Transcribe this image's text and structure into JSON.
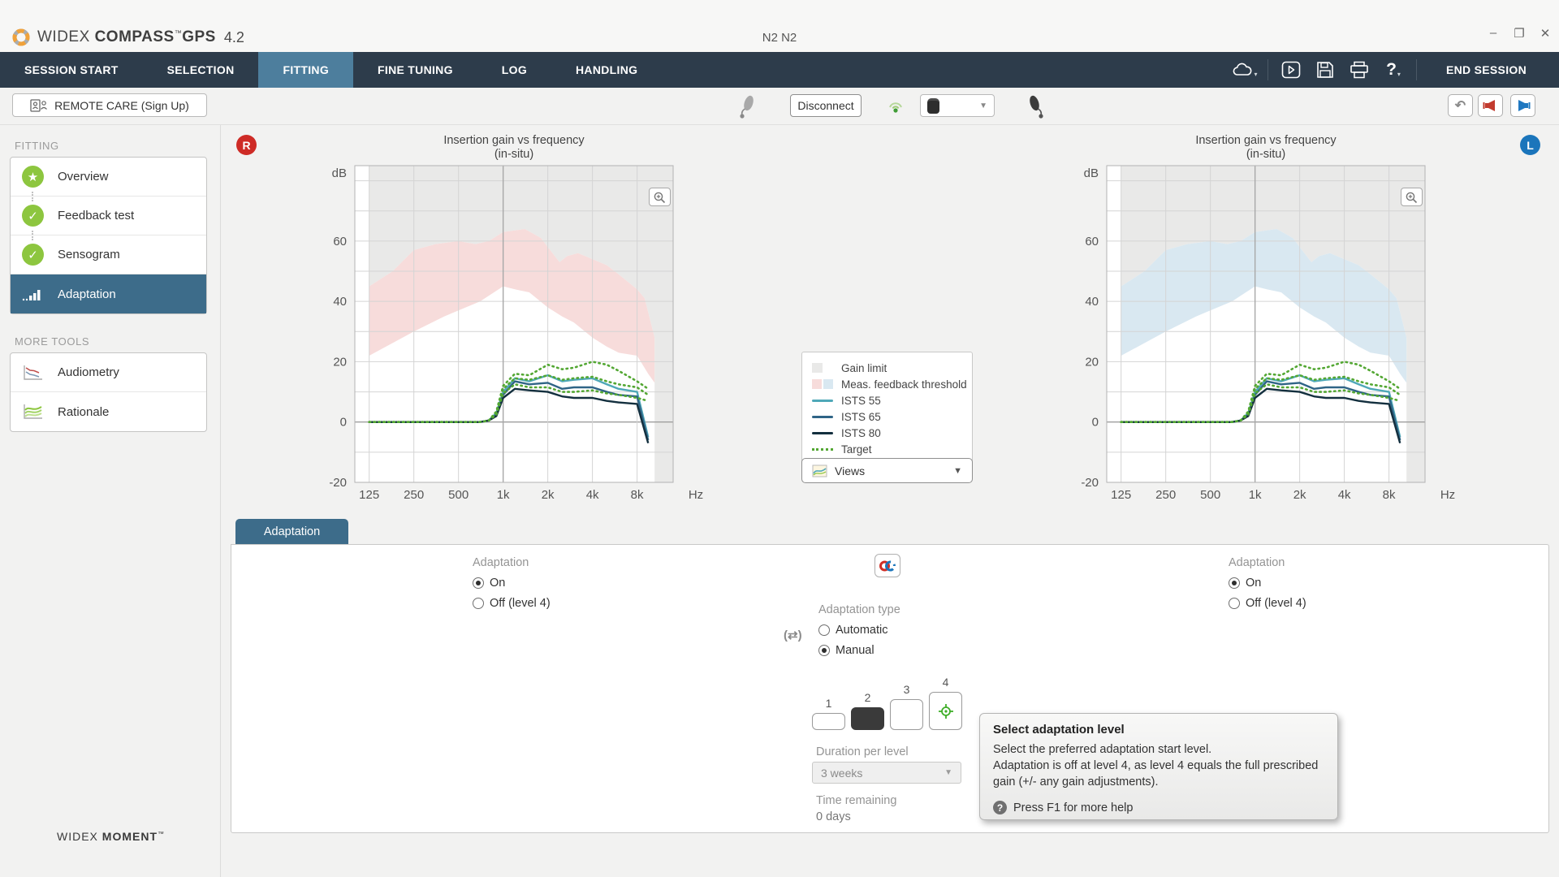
{
  "window": {
    "brand": "WIDEX",
    "product": "COMPASS",
    "tm": "™",
    "suite": "GPS",
    "version": "4.2",
    "center_title": "N2 N2"
  },
  "icons": {
    "minimize": "–",
    "maximize": "❐",
    "close": "✕",
    "caret_down": "▼",
    "undo": "↶",
    "help": "?",
    "earlink": "(⇄)"
  },
  "nav": {
    "tabs": [
      {
        "label": "SESSION START"
      },
      {
        "label": "SELECTION"
      },
      {
        "label": "FITTING"
      },
      {
        "label": "FINE TUNING"
      },
      {
        "label": "LOG"
      },
      {
        "label": "HANDLING"
      }
    ],
    "active_tab": "FITTING",
    "end_session": "END SESSION"
  },
  "toolbar": {
    "remote_care_label": "REMOTE CARE (Sign Up)",
    "disconnect_label": "Disconnect"
  },
  "sidebar": {
    "section1": "FITTING",
    "items": [
      {
        "label": "Overview",
        "icon": "star",
        "glyph": "★"
      },
      {
        "label": "Feedback test",
        "icon": "check",
        "glyph": "✓"
      },
      {
        "label": "Sensogram",
        "icon": "check",
        "glyph": "✓"
      },
      {
        "label": "Adaptation",
        "icon": "bars",
        "selected": true
      }
    ],
    "section2": "MORE TOOLS",
    "tools": [
      {
        "label": "Audiometry"
      },
      {
        "label": "Rationale"
      }
    ]
  },
  "legend": {
    "items": [
      {
        "label": "Gain limit",
        "type": "gray-box"
      },
      {
        "label": "Meas. feedback threshold",
        "type": "dual-box"
      },
      {
        "label": "ISTS 55",
        "type": "line",
        "color": "#4fa8b8"
      },
      {
        "label": "ISTS 65",
        "type": "line",
        "color": "#2f6486"
      },
      {
        "label": "ISTS 80",
        "type": "line",
        "color": "#132f3e"
      },
      {
        "label": "Target",
        "type": "dotted",
        "color": "#53a733"
      }
    ]
  },
  "views_label": "Views",
  "chart_data": [
    {
      "type": "line",
      "side": "R",
      "title": "Insertion gain vs frequency",
      "subtitle": "(in-situ)",
      "ylabel": "dB",
      "xlabel": "Hz",
      "ylim": [
        -20,
        85
      ],
      "xlim": [
        100,
        14000
      ],
      "grid": true,
      "x_ticks": [
        125,
        250,
        500,
        1000,
        2000,
        4000,
        8000
      ],
      "x_tick_labels": [
        "125",
        "250",
        "500",
        "1k",
        "2k",
        "4k",
        "8k"
      ],
      "y_ticks": [
        60,
        40,
        20,
        0,
        -20
      ],
      "band_color": "#f7dcdb",
      "gain_limit_color": "#e9e9e8",
      "gain_limit_from": 10500,
      "frequencies": [
        125,
        200,
        300,
        400,
        500,
        600,
        700,
        800,
        900,
        1000,
        1200,
        1500,
        2000,
        2500,
        3000,
        4000,
        5000,
        6000,
        8000,
        9500
      ],
      "series": [
        {
          "name": "ISTS 55",
          "color": "#4fa8b8",
          "style": "solid",
          "values": [
            0,
            0,
            0,
            0,
            0,
            0,
            0,
            0.5,
            3,
            10,
            14.5,
            13.5,
            15.5,
            13.5,
            14,
            14.5,
            12.5,
            11,
            10,
            -5
          ]
        },
        {
          "name": "ISTS 65",
          "color": "#2f6486",
          "style": "solid",
          "values": [
            0,
            0,
            0,
            0,
            0,
            0,
            0,
            0.5,
            2.5,
            9,
            13.5,
            12.5,
            13,
            11,
            11.5,
            11.5,
            10,
            9,
            8.5,
            -6
          ]
        },
        {
          "name": "ISTS 80",
          "color": "#132f3e",
          "style": "solid",
          "values": [
            0,
            0,
            0,
            0,
            0,
            0,
            0,
            0.5,
            2,
            8,
            11,
            10.5,
            10,
            8.5,
            8,
            8,
            7,
            6.5,
            6,
            -7
          ]
        },
        {
          "name": "Target 55",
          "color": "#53a733",
          "style": "dotted",
          "values": [
            0,
            0,
            0,
            0,
            0,
            0,
            0,
            0.5,
            3.5,
            12,
            16,
            15.5,
            19,
            17.5,
            18,
            20,
            19,
            17,
            13.5,
            11
          ]
        },
        {
          "name": "Target 65",
          "color": "#53a733",
          "style": "dotted",
          "values": [
            0,
            0,
            0,
            0,
            0,
            0,
            0,
            0.5,
            3,
            11,
            14.5,
            14,
            15.5,
            14,
            14.5,
            15,
            13.5,
            12.5,
            11.5,
            9
          ]
        },
        {
          "name": "Target 80",
          "color": "#53a733",
          "style": "dotted",
          "values": [
            0,
            0,
            0,
            0,
            0,
            0,
            0,
            0.5,
            2.5,
            9.5,
            12.5,
            11.5,
            11.5,
            10,
            10,
            10.5,
            9.5,
            9,
            8,
            7
          ]
        }
      ],
      "feedback_threshold_upper": [
        [
          125,
          45
        ],
        [
          180,
          50
        ],
        [
          250,
          57
        ],
        [
          350,
          59
        ],
        [
          500,
          60
        ],
        [
          650,
          59
        ],
        [
          800,
          60
        ],
        [
          1000,
          63
        ],
        [
          1400,
          64
        ],
        [
          1800,
          61
        ],
        [
          2000,
          58
        ],
        [
          2400,
          53
        ],
        [
          2700,
          55
        ],
        [
          3200,
          56
        ],
        [
          4000,
          54
        ],
        [
          5000,
          52
        ],
        [
          6000,
          49
        ],
        [
          8000,
          44
        ],
        [
          9000,
          41
        ],
        [
          10500,
          28
        ]
      ],
      "feedback_threshold_lower": [
        [
          125,
          22
        ],
        [
          250,
          30
        ],
        [
          400,
          35
        ],
        [
          500,
          37
        ],
        [
          700,
          40
        ],
        [
          1000,
          45
        ],
        [
          1200,
          44
        ],
        [
          1500,
          43
        ],
        [
          2000,
          38
        ],
        [
          2500,
          35
        ],
        [
          3000,
          33
        ],
        [
          4000,
          28
        ],
        [
          5000,
          25
        ],
        [
          6000,
          23
        ],
        [
          8000,
          22
        ],
        [
          9500,
          16
        ],
        [
          10500,
          13
        ]
      ]
    },
    {
      "type": "line",
      "side": "L",
      "title": "Insertion gain vs frequency",
      "subtitle": "(in-situ)",
      "ylabel": "dB",
      "xlabel": "Hz",
      "ylim": [
        -20,
        85
      ],
      "xlim": [
        100,
        14000
      ],
      "grid": true,
      "x_ticks": [
        125,
        250,
        500,
        1000,
        2000,
        4000,
        8000
      ],
      "x_tick_labels": [
        "125",
        "250",
        "500",
        "1k",
        "2k",
        "4k",
        "8k"
      ],
      "y_ticks": [
        60,
        40,
        20,
        0,
        -20
      ],
      "band_color": "#d9e8f1",
      "gain_limit_color": "#e9e9e8",
      "gain_limit_from": 10500,
      "frequencies": [
        125,
        200,
        300,
        400,
        500,
        600,
        700,
        800,
        900,
        1000,
        1200,
        1500,
        2000,
        2500,
        3000,
        4000,
        5000,
        6000,
        8000,
        9500
      ],
      "series": [
        {
          "name": "ISTS 55",
          "color": "#4fa8b8",
          "style": "solid",
          "values": [
            0,
            0,
            0,
            0,
            0,
            0,
            0,
            0.5,
            3,
            10,
            14.5,
            13.5,
            15.5,
            13.5,
            14,
            14.5,
            12.5,
            11,
            10,
            -5
          ]
        },
        {
          "name": "ISTS 65",
          "color": "#2f6486",
          "style": "solid",
          "values": [
            0,
            0,
            0,
            0,
            0,
            0,
            0,
            0.5,
            2.5,
            9,
            13.5,
            12.5,
            13,
            11,
            11.5,
            11.5,
            10,
            9,
            8.5,
            -6
          ]
        },
        {
          "name": "ISTS 80",
          "color": "#132f3e",
          "style": "solid",
          "values": [
            0,
            0,
            0,
            0,
            0,
            0,
            0,
            0.5,
            2,
            8,
            11,
            10.5,
            10,
            8.5,
            8,
            8,
            7,
            6.5,
            6,
            -7
          ]
        },
        {
          "name": "Target 55",
          "color": "#53a733",
          "style": "dotted",
          "values": [
            0,
            0,
            0,
            0,
            0,
            0,
            0,
            0.5,
            3.5,
            12,
            16,
            15.5,
            19,
            17.5,
            18,
            20,
            19,
            17,
            13.5,
            11
          ]
        },
        {
          "name": "Target 65",
          "color": "#53a733",
          "style": "dotted",
          "values": [
            0,
            0,
            0,
            0,
            0,
            0,
            0,
            0.5,
            3,
            11,
            14.5,
            14,
            15.5,
            14,
            14.5,
            15,
            13.5,
            12.5,
            11.5,
            9
          ]
        },
        {
          "name": "Target 80",
          "color": "#53a733",
          "style": "dotted",
          "values": [
            0,
            0,
            0,
            0,
            0,
            0,
            0,
            0.5,
            2.5,
            9.5,
            12.5,
            11.5,
            11.5,
            10,
            10,
            10.5,
            9.5,
            9,
            8,
            7
          ]
        }
      ],
      "feedback_threshold_upper": [
        [
          125,
          45
        ],
        [
          180,
          50
        ],
        [
          250,
          57
        ],
        [
          350,
          59
        ],
        [
          500,
          60
        ],
        [
          650,
          59
        ],
        [
          800,
          60
        ],
        [
          1000,
          63
        ],
        [
          1400,
          64
        ],
        [
          1800,
          61
        ],
        [
          2000,
          58
        ],
        [
          2400,
          53
        ],
        [
          2700,
          55
        ],
        [
          3200,
          56
        ],
        [
          4000,
          54
        ],
        [
          5000,
          52
        ],
        [
          6000,
          49
        ],
        [
          8000,
          44
        ],
        [
          9000,
          41
        ],
        [
          10500,
          28
        ]
      ],
      "feedback_threshold_lower": [
        [
          125,
          22
        ],
        [
          250,
          30
        ],
        [
          400,
          35
        ],
        [
          500,
          37
        ],
        [
          700,
          40
        ],
        [
          1000,
          45
        ],
        [
          1200,
          44
        ],
        [
          1500,
          43
        ],
        [
          2000,
          38
        ],
        [
          2500,
          35
        ],
        [
          3000,
          33
        ],
        [
          4000,
          28
        ],
        [
          5000,
          25
        ],
        [
          6000,
          23
        ],
        [
          8000,
          22
        ],
        [
          9500,
          16
        ],
        [
          10500,
          13
        ]
      ]
    }
  ],
  "panel": {
    "tab": "Adaptation",
    "left": {
      "title": "Adaptation",
      "on": "On",
      "off": "Off (level 4)",
      "selected": "On"
    },
    "right": {
      "title": "Adaptation",
      "on": "On",
      "off": "Off (level 4)",
      "selected": "On"
    },
    "center": {
      "type_title": "Adaptation type",
      "automatic": "Automatic",
      "manual": "Manual",
      "selected_type": "Manual",
      "levels": [
        "1",
        "2",
        "3",
        "4"
      ],
      "selected_level": "2",
      "duration_label": "Duration per level",
      "duration_value": "3 weeks",
      "time_label": "Time remaining",
      "time_value": "0 days"
    }
  },
  "tooltip": {
    "title": "Select adaptation level",
    "line1": "Select the preferred adaptation start level.",
    "line2": "Adaptation is off at level 4, as level 4 equals the full prescribed gain (+/- any gain adjustments).",
    "help": "Press F1 for more help"
  },
  "footer": {
    "brand1": "WIDEX",
    "brand2": "MOMENT",
    "tm": "™"
  },
  "colors": {
    "nav_bg": "#2d3c4b",
    "nav_active": "#4d7e9d",
    "selected_blue": "#3d6c8a",
    "green": "#8dc63f",
    "badge_red": "#ce2b26",
    "badge_blue": "#1b75bb"
  }
}
